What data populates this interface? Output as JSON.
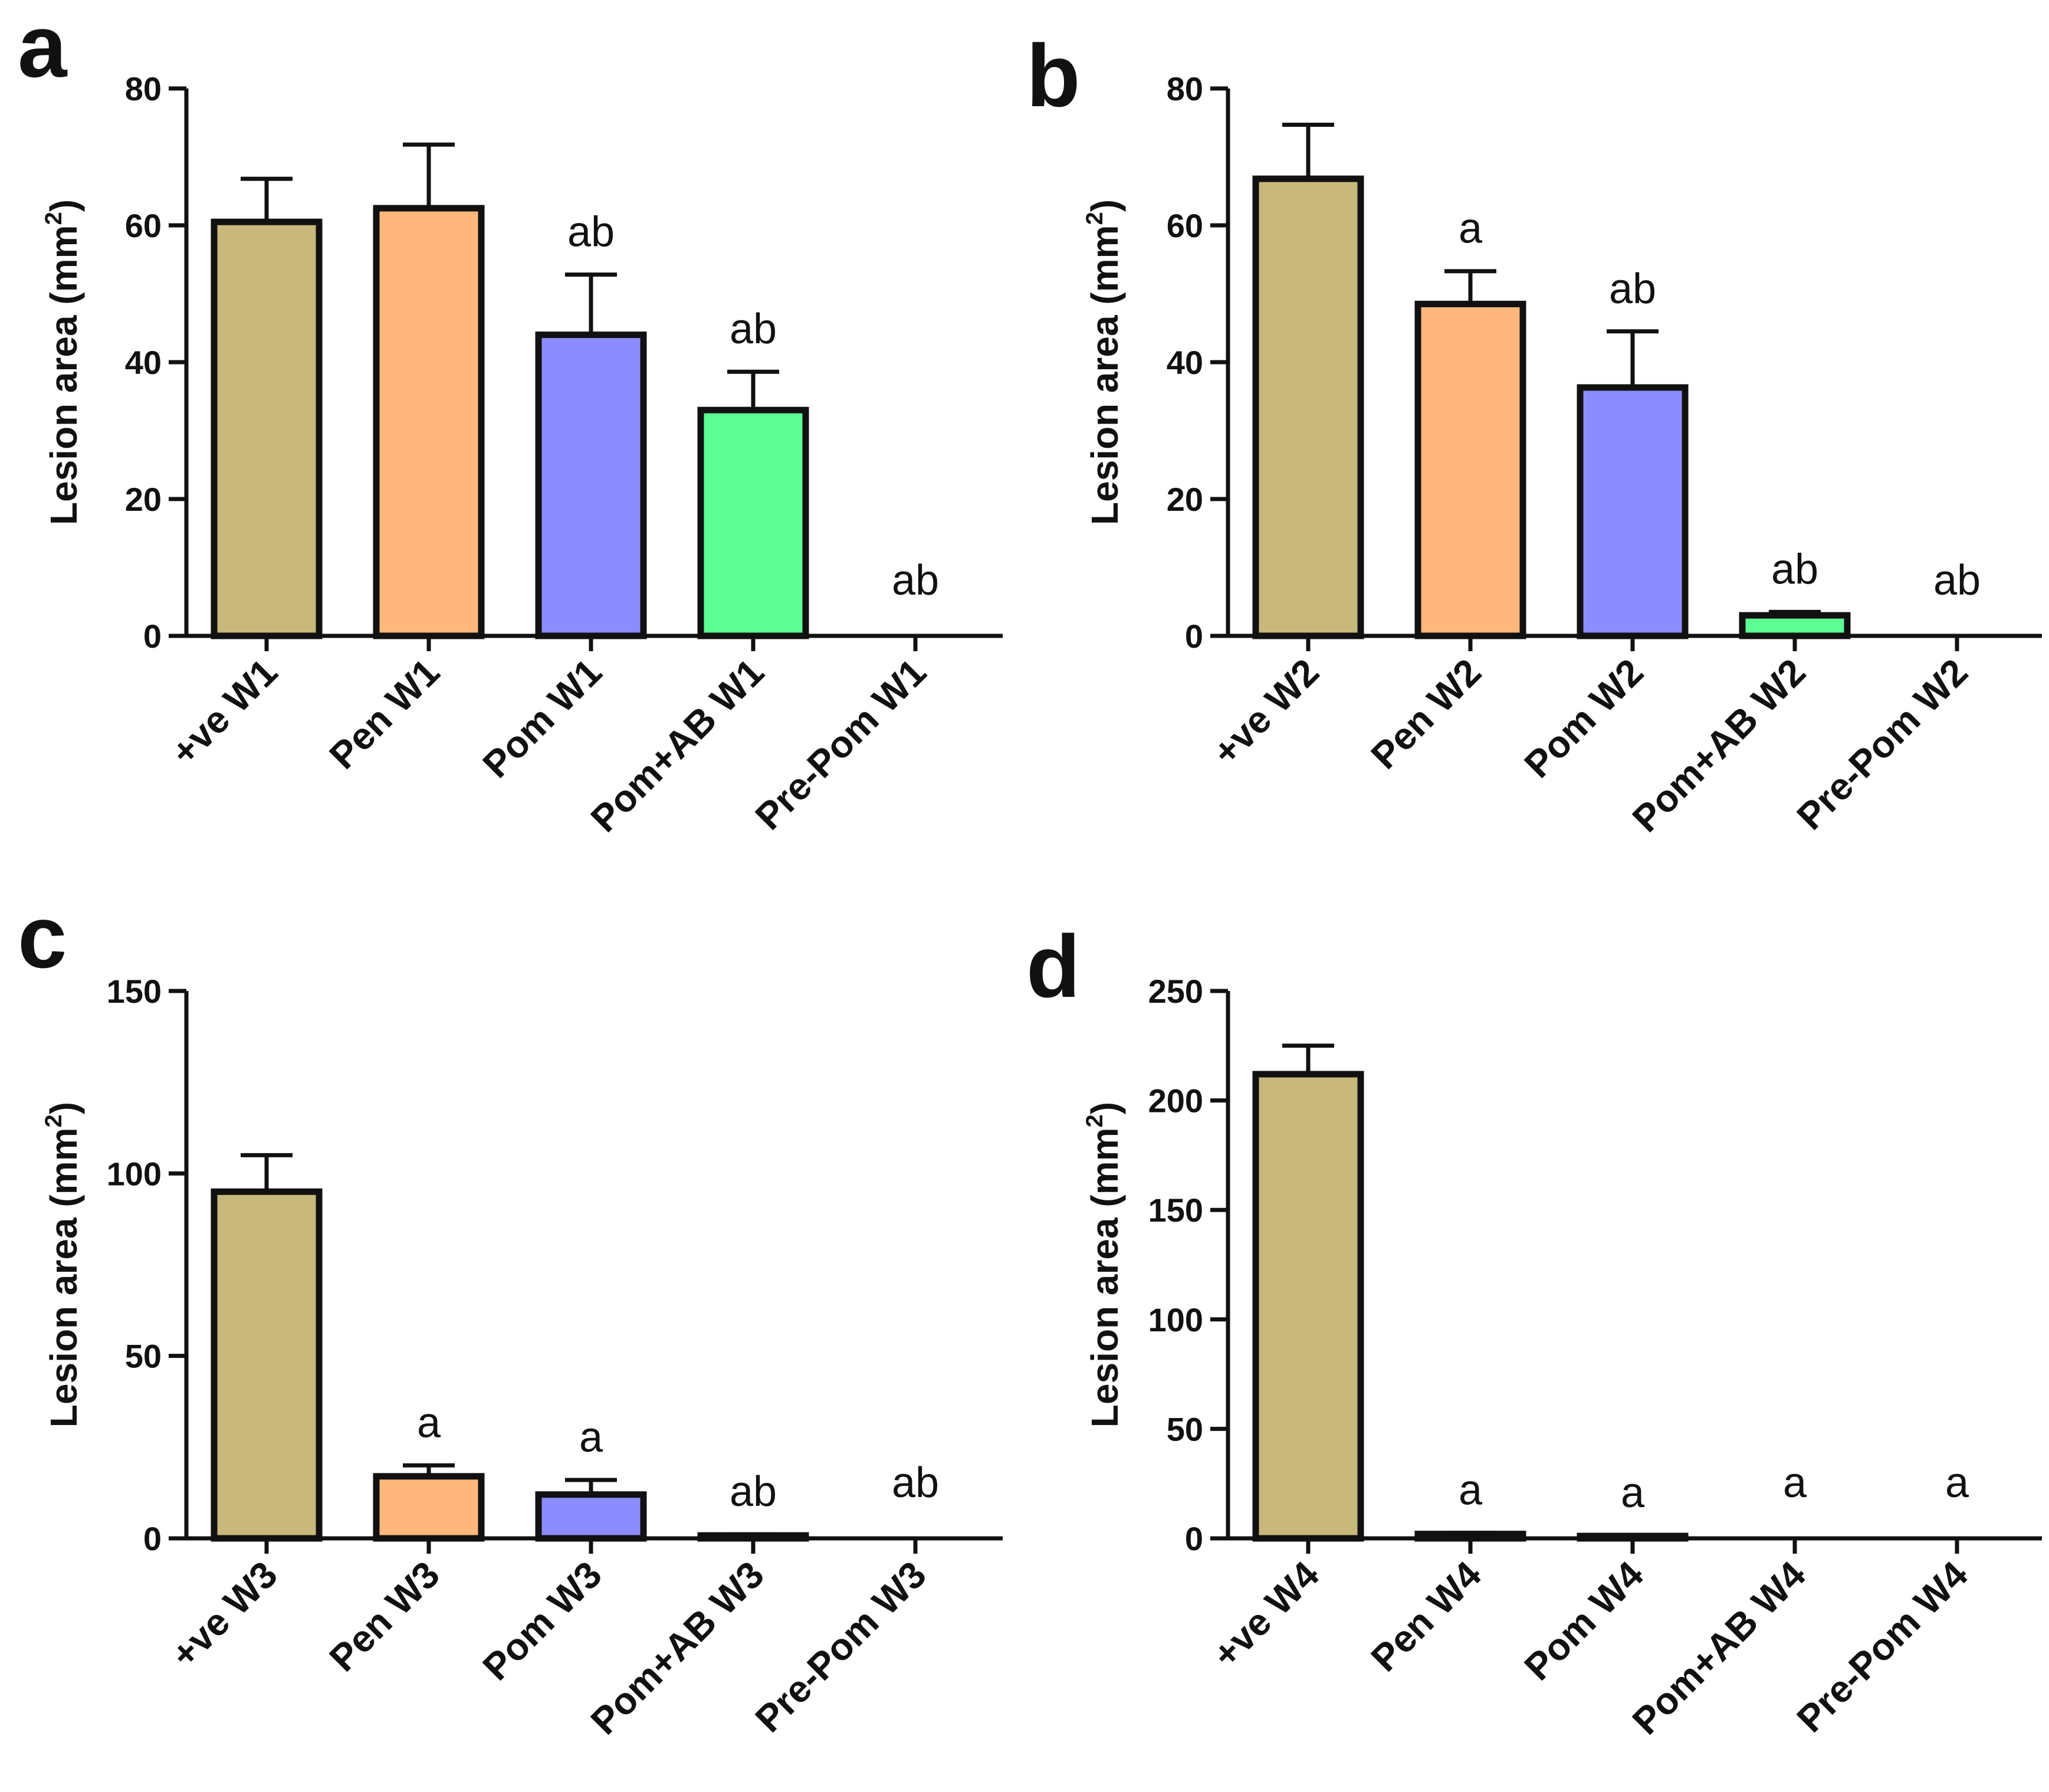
{
  "colors": {
    "positive": "#c8b87b",
    "pen": "#ffb77c",
    "pom": "#8c8cff",
    "pom_ab": "#5dff95",
    "pre_pom": "#ffffff",
    "axis": "#111111"
  },
  "chart_data": [
    {
      "panel": "a",
      "type": "bar",
      "ylabel": "Lesion area (mm",
      "ylabel_sup": "2",
      "ylabel_close": ")",
      "ylim": [
        0,
        80
      ],
      "yticks": [
        0,
        20,
        40,
        60,
        80
      ],
      "categories": [
        "+ve W1",
        "Pen W1",
        "Pom W1",
        "Pom+AB W1",
        "Pre-Pom W1"
      ],
      "values": [
        60.5,
        62.5,
        44,
        33,
        0
      ],
      "errors": [
        6.3,
        9.3,
        8.8,
        5.6,
        0
      ],
      "significance": [
        "",
        "",
        "ab",
        "ab",
        "ab"
      ],
      "bar_colors": [
        "positive",
        "pen",
        "pom",
        "pom_ab",
        "pre_pom"
      ]
    },
    {
      "panel": "b",
      "type": "bar",
      "ylabel": "Lesion area (mm",
      "ylabel_sup": "2",
      "ylabel_close": ")",
      "ylim": [
        0,
        80
      ],
      "yticks": [
        0,
        20,
        40,
        60,
        80
      ],
      "categories": [
        "+ve W2",
        "Pen W2",
        "Pom W2",
        "Pom+AB W2",
        "Pre-Pom W2"
      ],
      "values": [
        66.8,
        48.5,
        36.3,
        3,
        0
      ],
      "errors": [
        7.9,
        4.8,
        8.2,
        0.5,
        0
      ],
      "significance": [
        "",
        "a",
        "ab",
        "ab",
        "ab"
      ],
      "bar_colors": [
        "positive",
        "pen",
        "pom",
        "pom_ab",
        "pre_pom"
      ]
    },
    {
      "panel": "c",
      "type": "bar",
      "ylabel": "Lesion area (mm",
      "ylabel_sup": "2",
      "ylabel_close": ")",
      "ylim": [
        0,
        150
      ],
      "yticks": [
        0,
        50,
        100,
        150
      ],
      "categories": [
        "+ve W3",
        "Pen W3",
        "Pom W3",
        "Pom+AB W3",
        "Pre-Pom W3"
      ],
      "values": [
        95,
        17,
        12,
        0.8,
        0
      ],
      "errors": [
        10,
        3,
        4,
        0.3,
        0
      ],
      "significance": [
        "",
        "a",
        "a",
        "ab",
        "ab"
      ],
      "bar_colors": [
        "positive",
        "pen",
        "pom",
        "pom_ab",
        "pre_pom"
      ]
    },
    {
      "panel": "d",
      "type": "bar",
      "ylabel": "Lesion area (mm",
      "ylabel_sup": "2",
      "ylabel_close": ")",
      "ylim": [
        0,
        250
      ],
      "yticks": [
        0,
        50,
        100,
        150,
        200,
        250
      ],
      "categories": [
        "+ve W4",
        "Pen W4",
        "Pom W4",
        "Pom+AB W4",
        "Pre-Pom W4"
      ],
      "values": [
        212,
        2,
        1,
        0,
        0
      ],
      "errors": [
        13,
        0.5,
        0.3,
        0,
        0
      ],
      "significance": [
        "",
        "a",
        "a",
        "a",
        "a"
      ],
      "bar_colors": [
        "positive",
        "pen",
        "pom",
        "pom_ab",
        "pre_pom"
      ]
    }
  ]
}
